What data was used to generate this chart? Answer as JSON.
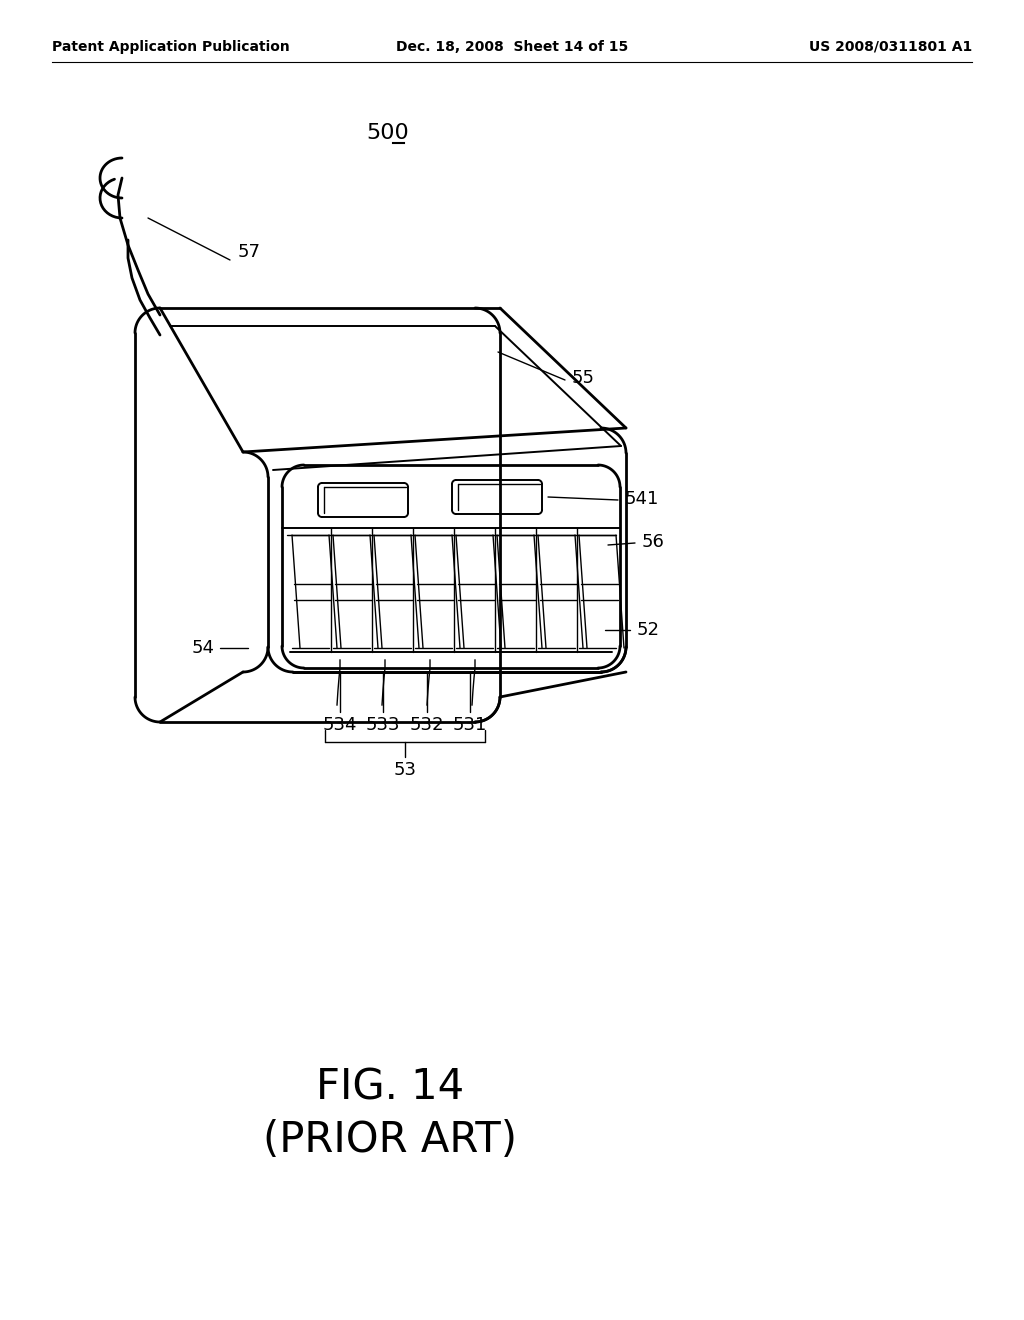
{
  "background_color": "#ffffff",
  "header_left": "Patent Application Publication",
  "header_mid": "Dec. 18, 2008  Sheet 14 of 15",
  "header_right": "US 2008/0311801 A1",
  "fig_label": "FIG. 14",
  "prior_art": "(PRIOR ART)",
  "part_number": "500",
  "lw_body": 2.0,
  "lw_detail": 1.4,
  "lw_thin": 1.0,
  "lw_leader": 1.0,
  "label_fs": 13,
  "header_fs": 10,
  "fig_fs": 30
}
